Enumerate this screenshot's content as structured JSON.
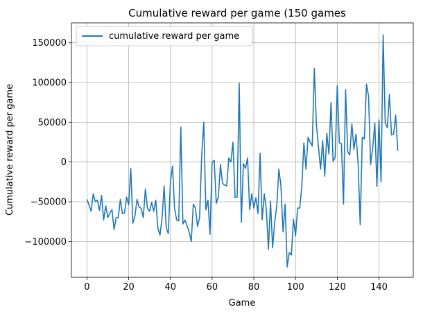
{
  "chart_data": {
    "type": "line",
    "title": "Cumulative reward per game (150 games",
    "xlabel": "Game",
    "ylabel": "Cumulative reward per game",
    "xlim": [
      -7.45,
      156.45
    ],
    "ylim": [
      -145000,
      175000
    ],
    "xticks": [
      0,
      20,
      40,
      60,
      80,
      100,
      120,
      140
    ],
    "xtick_labels": [
      "0",
      "20",
      "40",
      "60",
      "80",
      "100",
      "120",
      "140"
    ],
    "yticks": [
      -100000,
      -50000,
      0,
      50000,
      100000,
      150000
    ],
    "ytick_labels": [
      "−100000",
      "−50000",
      "0",
      "50000",
      "100000",
      "150000"
    ],
    "grid": true,
    "legend_position": "top-left",
    "series": [
      {
        "name": "cumulative reward per game",
        "color": "#1f77b4",
        "x_start": 0,
        "values": [
          -47000,
          -54000,
          -62000,
          -40000,
          -50000,
          -48000,
          -61000,
          -42000,
          -73000,
          -55000,
          -70000,
          -64000,
          -60000,
          -85000,
          -70000,
          -70000,
          -47000,
          -65000,
          -64000,
          -44000,
          -54000,
          -8000,
          -77000,
          -68000,
          -47000,
          -57000,
          -58000,
          -70000,
          -34000,
          -58000,
          -62000,
          -51000,
          -62000,
          -48000,
          -83000,
          -92000,
          -71000,
          -30000,
          -83000,
          -90000,
          -25000,
          -5000,
          -58000,
          -73000,
          -74000,
          44000,
          -78000,
          -73000,
          -80000,
          -88000,
          -100000,
          -53000,
          -58000,
          -81000,
          -70000,
          8000,
          50000,
          -60000,
          -48000,
          -91000,
          0,
          2000,
          -52000,
          -44000,
          -3000,
          -27000,
          -29000,
          -30000,
          5000,
          0,
          25000,
          -45000,
          -44000,
          99000,
          -76000,
          -2000,
          -8000,
          5000,
          -60000,
          -40000,
          -58000,
          -45000,
          -65000,
          11000,
          -73000,
          -40000,
          -60000,
          -110000,
          -49000,
          -108000,
          -76000,
          -55000,
          -9000,
          -30000,
          -88000,
          -53000,
          -132000,
          -114000,
          -117000,
          -72000,
          -93000,
          -58000,
          -58000,
          -31000,
          24000,
          -9000,
          31000,
          25000,
          20000,
          118000,
          47000,
          19000,
          -9000,
          27000,
          -18000,
          36000,
          10000,
          75000,
          1000,
          6000,
          96000,
          24000,
          23000,
          -53000,
          91000,
          13000,
          9000,
          48000,
          16000,
          35000,
          -2000,
          -79000,
          31000,
          29000,
          98000,
          83000,
          -3000,
          18000,
          49000,
          -31000,
          53000,
          -25000,
          160000,
          49000,
          43000,
          85000,
          34000,
          35000,
          59000,
          14000
        ]
      }
    ]
  }
}
